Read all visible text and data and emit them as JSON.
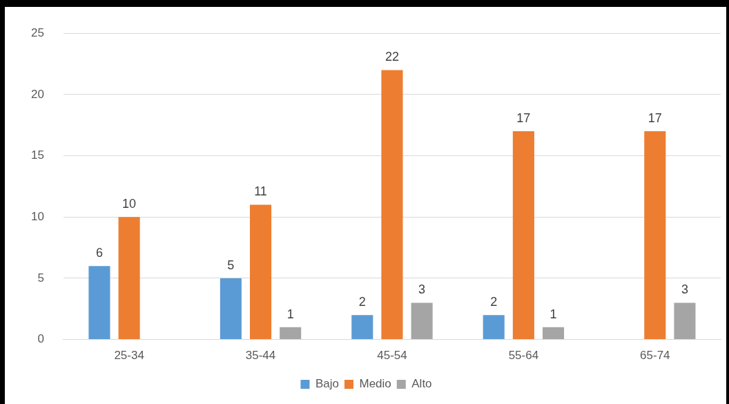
{
  "chart_data": {
    "type": "bar",
    "categories": [
      "25-34",
      "35-44",
      "45-54",
      "55-64",
      "65-74"
    ],
    "series": [
      {
        "name": "Bajo",
        "color": "#5b9bd5",
        "values": [
          6,
          5,
          2,
          2,
          null
        ]
      },
      {
        "name": "Medio",
        "color": "#ed7d31",
        "values": [
          10,
          11,
          22,
          17,
          17
        ]
      },
      {
        "name": "Alto",
        "color": "#a5a5a5",
        "values": [
          null,
          1,
          3,
          1,
          3
        ]
      }
    ],
    "ylim": [
      0,
      25
    ],
    "yticks": [
      0,
      5,
      10,
      15,
      20,
      25
    ],
    "grid": "y",
    "legend": "bottom",
    "data_labels": true
  }
}
